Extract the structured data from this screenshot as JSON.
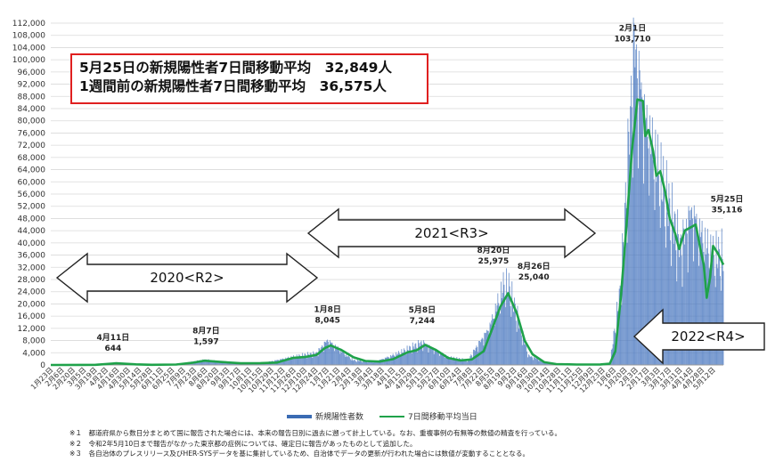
{
  "callout": {
    "line1": "5月25日の新規陽性者7日間移動平均　32,849人",
    "line2": "1週間前の新規陽性者7日間移動平均　36,575人"
  },
  "legend": {
    "bar_label": "新規陽性者数",
    "line_label": "7日間移動平均当日"
  },
  "notes": [
    "※１　都道府県から数日分まとめて国に報告された場合には、本来の報告日別に過去に遡って計上している。なお、重複事例の有無等の数値の精査を行っている。",
    "※２　令和2年5月10日まで報告がなかった東京都の症例については、確定日に報告があったものとして追加した。",
    "※３　各自治体のプレスリリース及びHER-SYSデータを基に集計しているため、自治体でデータの更新が行われた場合には数値が変動することとなる。"
  ],
  "colors": {
    "bars": "#4a78c0",
    "line": "#1fa24a",
    "callout_border": "#e02020"
  },
  "chart_data": {
    "type": "bar+line",
    "title": "",
    "ylim": [
      0,
      112000
    ],
    "y_ticks": [
      0,
      4000,
      8000,
      12000,
      16000,
      20000,
      24000,
      28000,
      32000,
      36000,
      40000,
      44000,
      48000,
      52000,
      56000,
      60000,
      64000,
      68000,
      72000,
      76000,
      80000,
      84000,
      88000,
      92000,
      96000,
      100000,
      104000,
      108000,
      112000
    ],
    "y_tick_labels": [
      "0",
      "4,000",
      "8,000",
      "12,000",
      "16,000",
      "20,000",
      "24,000",
      "28,000",
      "32,000",
      "36,000",
      "40,000",
      "44,000",
      "48,000",
      "52,000",
      "56,000",
      "60,000",
      "64,000",
      "68,000",
      "72,000",
      "76,000",
      "80,000",
      "84,000",
      "88,000",
      "92,000",
      "96,000",
      "100,000",
      "104,000",
      "108,000",
      "112,000"
    ],
    "x_start": "2020-01-23",
    "x_end": "2022-05-25",
    "x_tick_labels": [
      "1月23日",
      "2月6日",
      "2月20日",
      "3月5日",
      "3月19日",
      "4月2日",
      "4月16日",
      "4月30日",
      "5月14日",
      "5月28日",
      "6月11日",
      "6月25日",
      "7月9日",
      "7月23日",
      "8月6日",
      "8月20日",
      "9月3日",
      "9月17日",
      "10月1日",
      "10月15日",
      "10月29日",
      "11月12日",
      "11月26日",
      "12月10日",
      "12月24日",
      "1月7日",
      "1月21日",
      "2月4日",
      "2月18日",
      "3月4日",
      "3月18日",
      "4月1日",
      "4月15日",
      "4月29日",
      "5月13日",
      "5月27日",
      "6月10日",
      "6月24日",
      "7月8日",
      "7月22日",
      "8月5日",
      "8月19日",
      "9月2日",
      "9月16日",
      "9月30日",
      "10月14日",
      "10月28日",
      "11月11日",
      "11月25日",
      "12月9日",
      "12月23日",
      "1月6日",
      "1月20日",
      "2月3日",
      "2月17日",
      "3月3日",
      "3月17日",
      "3月31日",
      "4月14日",
      "4月28日",
      "5月12日"
    ],
    "daily_cases_series": {
      "name": "新規陽性者数",
      "points": [
        [
          "2020-01-23",
          0
        ],
        [
          "2020-03-01",
          30
        ],
        [
          "2020-04-11",
          644
        ],
        [
          "2020-05-20",
          40
        ],
        [
          "2020-07-01",
          200
        ],
        [
          "2020-08-07",
          1597
        ],
        [
          "2020-09-20",
          500
        ],
        [
          "2020-10-20",
          700
        ],
        [
          "2020-11-20",
          2400
        ],
        [
          "2020-12-25",
          3800
        ],
        [
          "2021-01-08",
          8045
        ],
        [
          "2021-02-10",
          1500
        ],
        [
          "2021-03-10",
          1100
        ],
        [
          "2021-04-15",
          4500
        ],
        [
          "2021-05-08",
          7244
        ],
        [
          "2021-06-10",
          2500
        ],
        [
          "2021-07-05",
          1500
        ],
        [
          "2021-08-01",
          12000
        ],
        [
          "2021-08-20",
          25975
        ],
        [
          "2021-08-26",
          25040
        ],
        [
          "2021-09-20",
          3000
        ],
        [
          "2021-10-20",
          200
        ],
        [
          "2021-12-15",
          150
        ],
        [
          "2022-01-01",
          500
        ],
        [
          "2022-01-15",
          25000
        ],
        [
          "2022-02-01",
          103710
        ],
        [
          "2022-02-15",
          80000
        ],
        [
          "2022-03-01",
          65000
        ],
        [
          "2022-03-15",
          52000
        ],
        [
          "2022-04-01",
          38000
        ],
        [
          "2022-04-15",
          50000
        ],
        [
          "2022-05-01",
          40000
        ],
        [
          "2022-05-10",
          35000
        ],
        [
          "2022-05-25",
          35116
        ]
      ]
    },
    "moving_avg_series": {
      "name": "7日間移動平均当日",
      "points": [
        [
          "2020-01-23",
          0
        ],
        [
          "2020-03-01",
          20
        ],
        [
          "2020-03-20",
          60
        ],
        [
          "2020-04-15",
          550
        ],
        [
          "2020-05-10",
          200
        ],
        [
          "2020-05-30",
          60
        ],
        [
          "2020-06-30",
          150
        ],
        [
          "2020-07-20",
          700
        ],
        [
          "2020-08-05",
          1400
        ],
        [
          "2020-08-25",
          1000
        ],
        [
          "2020-09-20",
          550
        ],
        [
          "2020-10-15",
          600
        ],
        [
          "2020-11-05",
          800
        ],
        [
          "2020-11-25",
          2300
        ],
        [
          "2020-12-10",
          2600
        ],
        [
          "2020-12-25",
          3300
        ],
        [
          "2021-01-05",
          5600
        ],
        [
          "2021-01-12",
          6400
        ],
        [
          "2021-01-25",
          5000
        ],
        [
          "2021-02-10",
          2500
        ],
        [
          "2021-02-25",
          1300
        ],
        [
          "2021-03-15",
          1100
        ],
        [
          "2021-04-01",
          1900
        ],
        [
          "2021-04-20",
          4200
        ],
        [
          "2021-05-01",
          4800
        ],
        [
          "2021-05-12",
          6600
        ],
        [
          "2021-05-25",
          5000
        ],
        [
          "2021-06-10",
          2300
        ],
        [
          "2021-06-25",
          1500
        ],
        [
          "2021-07-10",
          1800
        ],
        [
          "2021-07-25",
          4500
        ],
        [
          "2021-08-05",
          12000
        ],
        [
          "2021-08-15",
          19000
        ],
        [
          "2021-08-25",
          23500
        ],
        [
          "2021-09-05",
          17000
        ],
        [
          "2021-09-15",
          8000
        ],
        [
          "2021-09-25",
          3500
        ],
        [
          "2021-10-10",
          900
        ],
        [
          "2021-10-25",
          300
        ],
        [
          "2021-11-20",
          150
        ],
        [
          "2021-12-20",
          180
        ],
        [
          "2022-01-01",
          400
        ],
        [
          "2022-01-08",
          4500
        ],
        [
          "2022-01-15",
          22000
        ],
        [
          "2022-01-22",
          45000
        ],
        [
          "2022-01-29",
          70000
        ],
        [
          "2022-02-05",
          87000
        ],
        [
          "2022-02-12",
          86500
        ],
        [
          "2022-02-15",
          75000
        ],
        [
          "2022-02-19",
          77000
        ],
        [
          "2022-02-25",
          70000
        ],
        [
          "2022-03-01",
          62000
        ],
        [
          "2022-03-06",
          63500
        ],
        [
          "2022-03-12",
          57000
        ],
        [
          "2022-03-18",
          48000
        ],
        [
          "2022-03-25",
          43000
        ],
        [
          "2022-03-30",
          38000
        ],
        [
          "2022-04-06",
          44000
        ],
        [
          "2022-04-13",
          45000
        ],
        [
          "2022-04-20",
          46000
        ],
        [
          "2022-04-26",
          38000
        ],
        [
          "2022-04-30",
          33000
        ],
        [
          "2022-05-04",
          22000
        ],
        [
          "2022-05-08",
          28500
        ],
        [
          "2022-05-12",
          39000
        ],
        [
          "2022-05-18",
          36575
        ],
        [
          "2022-05-22",
          34500
        ],
        [
          "2022-05-25",
          32849
        ]
      ]
    },
    "annotations": [
      {
        "date": "2020-04-11",
        "label": "4月11日",
        "value_label": "644",
        "value": 644
      },
      {
        "date": "2020-08-07",
        "label": "8月7日",
        "value_label": "1,597",
        "value": 1597
      },
      {
        "date": "2021-01-08",
        "label": "1月8日",
        "value_label": "8,045",
        "value": 8045
      },
      {
        "date": "2021-05-08",
        "label": "5月8日",
        "value_label": "7,244",
        "value": 7244
      },
      {
        "date": "2021-08-20",
        "label": "8月20日",
        "value_label": "25,975",
        "value": 25975
      },
      {
        "date": "2021-08-26",
        "label": "8月26日",
        "value_label": "25,040",
        "value": 25040
      },
      {
        "date": "2022-02-01",
        "label": "2月1日",
        "value_label": "103,710",
        "value": 103710
      },
      {
        "date": "2022-05-25",
        "label": "5月25日",
        "value_label": "35,116",
        "value": 35116
      }
    ],
    "period_arrows": [
      {
        "label": "2020<R2>",
        "from": "2020-01-23",
        "to": "2020-12-31"
      },
      {
        "label": "2021<R3>",
        "from": "2021-01-01",
        "to": "2021-12-31"
      },
      {
        "label": "2022<R4>",
        "from": "2022-01-01",
        "to": "2022-05-25"
      }
    ]
  }
}
